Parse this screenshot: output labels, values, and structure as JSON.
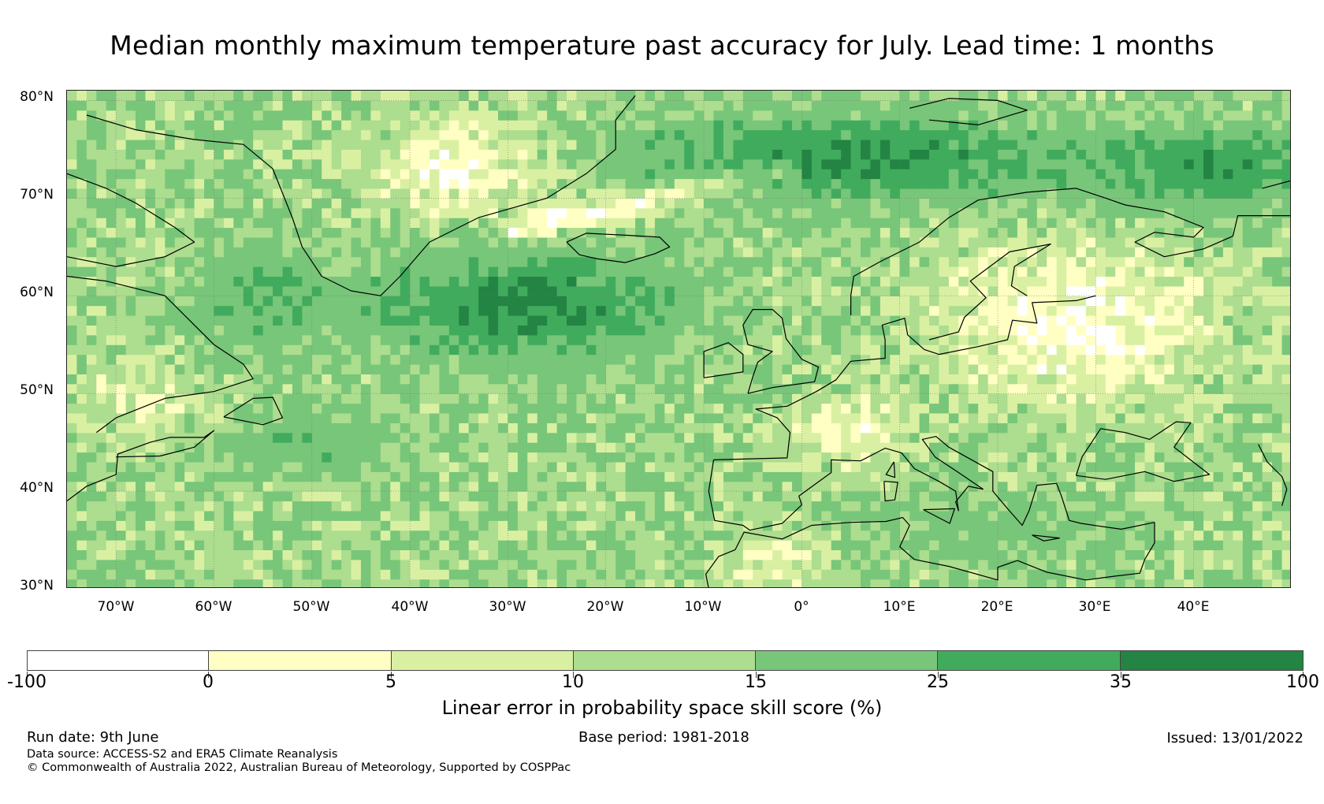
{
  "title": "Median monthly maximum temperature past accuracy for July. Lead time: 1 months",
  "map": {
    "lat_labels": [
      "80°N",
      "70°N",
      "60°N",
      "50°N",
      "40°N",
      "30°N"
    ],
    "lon_labels": [
      "70°W",
      "60°W",
      "50°W",
      "40°W",
      "30°W",
      "20°W",
      "10°W",
      "0°",
      "10°E",
      "20°E",
      "30°E",
      "40°E"
    ],
    "lon_range": [
      -75,
      50
    ],
    "lat_range": [
      30,
      81
    ],
    "graticule": "dotted grey every 10°"
  },
  "colorbar": {
    "title": "Linear error in probability space skill score (%)",
    "boundaries": [
      "-100",
      "0",
      "5",
      "10",
      "15",
      "25",
      "35",
      "100"
    ],
    "colors": [
      "#ffffff",
      "#ffffc4",
      "#d9f0a3",
      "#addd8e",
      "#78c679",
      "#41ab5d",
      "#238443"
    ]
  },
  "footer": {
    "run_date": "Run date: 9th June",
    "base_period": "Base period: 1981-2018",
    "issued": "Issued: 13/01/2022",
    "data_source": "Data source: ACCESS-S2 and ERA5 Climate Reanalysis",
    "copyright": "© Commonwealth of Australia 2022, Australian Bureau of Meteorology, Supported by COSPPac"
  }
}
